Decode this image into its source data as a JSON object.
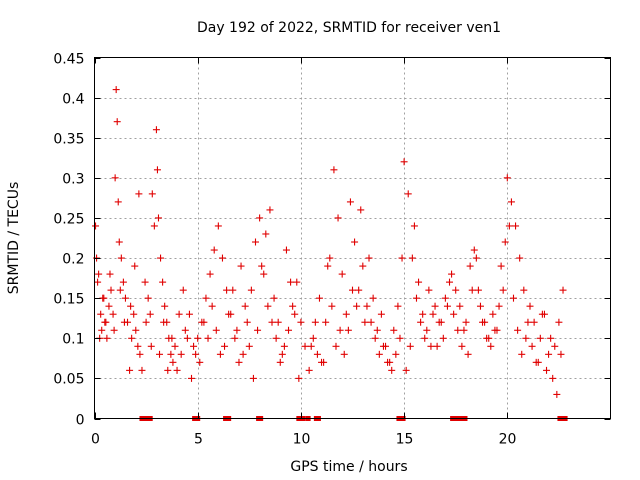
{
  "chart_data": {
    "type": "scatter",
    "title": "Day 192 of 2022, SRMTID for receiver ven1",
    "xlabel": "GPS time / hours",
    "ylabel": "SRMTID / TECUs",
    "xlim": [
      0,
      25
    ],
    "ylim": [
      0,
      0.45
    ],
    "x_ticks": [
      0,
      5,
      10,
      15,
      20
    ],
    "x_tick_labels": [
      "0",
      "5",
      "10",
      "15",
      "20"
    ],
    "y_ticks": [
      0,
      0.05,
      0.1,
      0.15,
      0.2,
      0.25,
      0.3,
      0.35,
      0.4,
      0.45
    ],
    "y_tick_labels": [
      "0",
      "0.05",
      "0.1",
      "0.15",
      "0.2",
      "0.25",
      "0.3",
      "0.35",
      "0.4",
      "0.45"
    ],
    "grid": true,
    "marker": "+",
    "color": "#e00000",
    "series": [
      {
        "name": "SRMTID",
        "x": [
          0.05,
          0.1,
          0.15,
          0.2,
          0.3,
          0.35,
          0.4,
          0.5,
          0.6,
          0.7,
          0.8,
          0.9,
          1.0,
          1.05,
          1.1,
          1.15,
          1.2,
          1.3,
          1.4,
          1.5,
          1.6,
          1.7,
          1.8,
          1.9,
          2.0,
          2.1,
          2.2,
          2.3,
          2.5,
          2.6,
          2.7,
          2.8,
          2.9,
          3.0,
          3.05,
          3.1,
          3.2,
          3.3,
          3.4,
          3.5,
          3.6,
          3.7,
          3.8,
          3.9,
          4.0,
          4.2,
          4.4,
          4.6,
          4.8,
          5.0,
          5.2,
          5.4,
          5.6,
          5.8,
          6.0,
          6.2,
          6.4,
          6.6,
          6.8,
          7.0,
          7.2,
          7.4,
          7.6,
          7.8,
          8.0,
          8.2,
          8.4,
          8.5,
          8.6,
          8.8,
          9.0,
          9.2,
          9.4,
          9.6,
          9.8,
          10.0,
          10.2,
          10.4,
          10.6,
          10.8,
          11.0,
          11.2,
          11.4,
          11.6,
          11.8,
          12.0,
          12.2,
          12.4,
          12.6,
          12.8,
          13.0,
          13.2,
          13.4,
          13.6,
          13.8,
          14.0,
          14.2,
          14.4,
          14.6,
          14.8,
          14.9,
          15.0,
          15.2,
          15.4,
          15.6,
          15.8,
          16.0,
          16.2,
          16.4,
          16.6,
          16.8,
          17.0,
          17.2,
          17.4,
          17.6,
          17.8,
          18.0,
          18.2,
          18.4,
          18.6,
          18.8,
          19.0,
          19.2,
          19.4,
          19.6,
          19.8,
          19.9,
          20.0,
          20.2,
          20.4,
          20.6,
          20.8,
          21.0,
          21.2,
          21.4,
          21.6,
          21.8,
          22.0,
          22.2,
          22.4,
          22.6,
          0.25,
          0.45,
          0.55,
          0.75,
          0.95,
          1.25,
          1.45,
          1.75,
          1.95,
          2.15,
          2.45,
          2.75,
          3.15,
          3.35,
          3.55,
          3.75,
          4.1,
          4.3,
          4.5,
          4.7,
          4.9,
          5.1,
          5.3,
          5.5,
          5.7,
          5.9,
          6.1,
          6.3,
          6.5,
          6.7,
          6.9,
          7.1,
          7.3,
          7.5,
          7.7,
          7.9,
          8.1,
          8.3,
          8.7,
          8.9,
          9.1,
          9.3,
          9.5,
          9.7,
          9.9,
          10.5,
          10.7,
          10.9,
          11.1,
          11.3,
          11.5,
          11.7,
          11.9,
          12.1,
          12.3,
          12.5,
          12.7,
          12.9,
          13.1,
          13.3,
          13.5,
          13.7,
          13.9,
          14.1,
          14.3,
          14.5,
          14.7,
          15.1,
          15.3,
          15.5,
          15.7,
          15.9,
          16.1,
          16.3,
          16.5,
          16.7,
          16.9,
          17.1,
          17.3,
          17.5,
          17.7,
          17.9,
          18.1,
          18.3,
          18.5,
          18.7,
          18.9,
          19.1,
          19.3,
          19.5,
          19.7,
          20.1,
          20.3,
          20.5,
          20.7,
          20.9,
          21.1,
          21.3,
          21.5,
          21.7,
          21.9,
          22.1,
          22.3,
          22.5,
          22.7
        ],
        "y": [
          0.24,
          0.2,
          0.17,
          0.18,
          0.13,
          0.11,
          0.15,
          0.12,
          0.1,
          0.14,
          0.16,
          0.13,
          0.3,
          0.41,
          0.37,
          0.27,
          0.22,
          0.2,
          0.17,
          0.15,
          0.12,
          0.06,
          0.1,
          0.13,
          0.11,
          0.09,
          0.08,
          0.06,
          0.12,
          0.15,
          0.13,
          0.28,
          0.24,
          0.36,
          0.31,
          0.25,
          0.2,
          0.17,
          0.14,
          0.12,
          0.1,
          0.08,
          0.07,
          0.09,
          0.06,
          0.08,
          0.11,
          0.13,
          0.09,
          0.1,
          0.12,
          0.15,
          0.18,
          0.21,
          0.24,
          0.2,
          0.16,
          0.13,
          0.1,
          0.07,
          0.08,
          0.12,
          0.16,
          0.22,
          0.25,
          0.18,
          0.14,
          0.26,
          0.12,
          0.1,
          0.07,
          0.09,
          0.11,
          0.14,
          0.17,
          0.12,
          0.09,
          0.06,
          0.1,
          0.08,
          0.07,
          0.12,
          0.2,
          0.31,
          0.25,
          0.18,
          0.13,
          0.27,
          0.22,
          0.16,
          0.19,
          0.14,
          0.12,
          0.1,
          0.08,
          0.09,
          0.07,
          0.06,
          0.08,
          0.1,
          0.2,
          0.32,
          0.28,
          0.2,
          0.15,
          0.12,
          0.1,
          0.16,
          0.13,
          0.09,
          0.12,
          0.15,
          0.17,
          0.13,
          0.11,
          0.09,
          0.12,
          0.19,
          0.21,
          0.16,
          0.12,
          0.1,
          0.09,
          0.11,
          0.14,
          0.16,
          0.22,
          0.3,
          0.27,
          0.24,
          0.2,
          0.16,
          0.12,
          0.09,
          0.07,
          0.1,
          0.13,
          0.08,
          0.05,
          0.03,
          0.08,
          0.1,
          0.15,
          0.12,
          0.18,
          0.11,
          0.16,
          0.12,
          0.14,
          0.19,
          0.28,
          0.17,
          0.09,
          0.08,
          0.12,
          0.06,
          0.1,
          0.13,
          0.16,
          0.1,
          0.05,
          0.08,
          0.07,
          0.12,
          0.1,
          0.14,
          0.11,
          0.08,
          0.09,
          0.13,
          0.16,
          0.11,
          0.19,
          0.14,
          0.09,
          0.05,
          0.11,
          0.19,
          0.23,
          0.15,
          0.12,
          0.08,
          0.21,
          0.17,
          0.13,
          0.05,
          0.09,
          0.12,
          0.15,
          0.07,
          0.19,
          0.14,
          0.09,
          0.11,
          0.08,
          0.11,
          0.16,
          0.14,
          0.26,
          0.12,
          0.2,
          0.15,
          0.11,
          0.13,
          0.09,
          0.07,
          0.11,
          0.14,
          0.06,
          0.09,
          0.24,
          0.17,
          0.13,
          0.11,
          0.09,
          0.14,
          0.12,
          0.1,
          0.14,
          0.18,
          0.16,
          0.14,
          0.11,
          0.08,
          0.16,
          0.2,
          0.14,
          0.12,
          0.1,
          0.13,
          0.11,
          0.19,
          0.24,
          0.15,
          0.11,
          0.08,
          0.1,
          0.14,
          0.12,
          0.07,
          0.13,
          0.06,
          0.1,
          0.09,
          0.12,
          0.16
        ]
      }
    ],
    "outage_x": [
      2.3,
      2.45,
      2.6,
      2.7,
      4.85,
      5.0,
      6.35,
      6.5,
      7.95,
      8.05,
      9.9,
      10.1,
      10.35,
      10.75,
      10.85,
      14.75,
      14.85,
      14.95,
      17.35,
      17.45,
      17.6,
      17.75,
      17.85,
      17.95,
      22.55,
      22.7,
      22.8
    ]
  }
}
